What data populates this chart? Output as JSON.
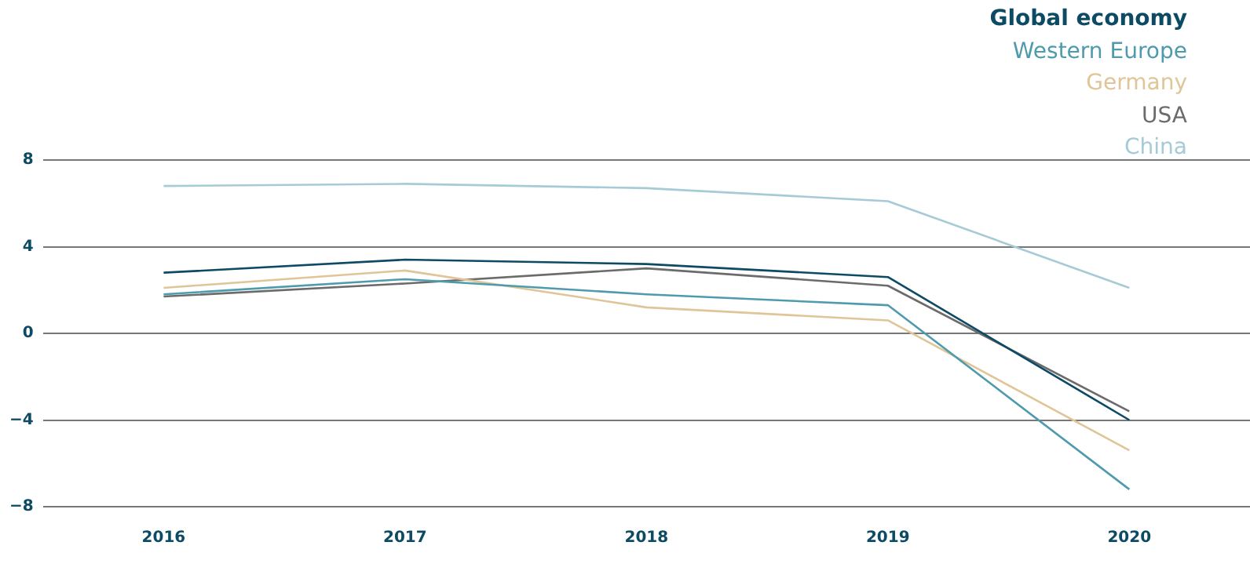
{
  "chart_data": {
    "type": "line",
    "categories": [
      "2016",
      "2017",
      "2018",
      "2019",
      "2020"
    ],
    "series": [
      {
        "name": "Global economy",
        "color": "#0d4a63",
        "values": [
          2.8,
          3.4,
          3.2,
          2.6,
          -4.0
        ]
      },
      {
        "name": "Western Europe",
        "color": "#4f9bae",
        "values": [
          1.8,
          2.5,
          1.8,
          1.3,
          -7.2
        ]
      },
      {
        "name": "Germany",
        "color": "#dfc598",
        "values": [
          2.1,
          2.9,
          1.2,
          0.6,
          -5.4
        ]
      },
      {
        "name": "USA",
        "color": "#6b6b6b",
        "values": [
          1.7,
          2.3,
          3.0,
          2.2,
          -3.6
        ]
      },
      {
        "name": "China",
        "color": "#a6cbd6",
        "values": [
          6.8,
          6.9,
          6.7,
          6.1,
          2.1
        ]
      }
    ],
    "ylim": [
      -8,
      8
    ],
    "yticks": [
      {
        "value": -8,
        "label": "−8"
      },
      {
        "value": -4,
        "label": "−4"
      },
      0,
      4,
      8
    ],
    "grid": "y",
    "legend": "top right",
    "marker": "none",
    "line_style": "solid"
  }
}
